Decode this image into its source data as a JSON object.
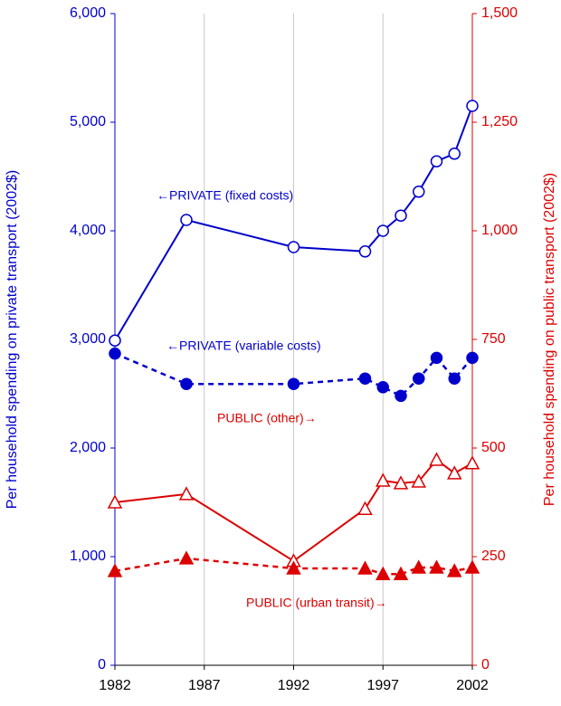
{
  "chart_data": {
    "type": "line",
    "x": [
      1982,
      1986,
      1992,
      1996,
      1997,
      1998,
      1999,
      2000,
      2001,
      2002
    ],
    "xlim": [
      1982,
      2002
    ],
    "xticks": [
      1982,
      1987,
      1992,
      1997,
      2002
    ],
    "ylim": [
      0,
      6000
    ],
    "yticks": [
      0,
      {
        "value": 1000,
        "label": "1,000"
      },
      {
        "value": 2000,
        "label": "2,000"
      },
      {
        "value": 3000,
        "label": "3,000"
      },
      {
        "value": 4000,
        "label": "4,000"
      },
      {
        "value": 5000,
        "label": "5,000"
      },
      {
        "value": 6000,
        "label": "6,000"
      }
    ],
    "y2lim": [
      0,
      1500
    ],
    "y2ticks": [
      0,
      250,
      500,
      750,
      {
        "value": 1000,
        "label": "1,000"
      },
      {
        "value": 1250,
        "label": "1,250"
      },
      {
        "value": 1500,
        "label": "1,500"
      }
    ],
    "ylabel": "Per household spending on private transport (2002$)",
    "y2label": "Per household spending on public transport (2002$)",
    "ycolor": "#0000cc",
    "y2color": "#dd0000",
    "grid": "x",
    "series": [
      {
        "name": "PRIVATE (fixed costs)",
        "color": "#0000cc",
        "dashed": false,
        "marker": "circle",
        "filled": false,
        "values": [
          2990,
          4100,
          3850,
          3810,
          4000,
          4140,
          4360,
          4640,
          4710,
          5150
        ]
      },
      {
        "name": "PRIVATE (variable costs)",
        "color": "#0000cc",
        "dashed": true,
        "marker": "circle",
        "filled": true,
        "values": [
          2870,
          2590,
          2590,
          2640,
          2560,
          2480,
          2640,
          2830,
          2640,
          2830
        ]
      },
      {
        "name": "PUBLIC  (other)",
        "color": "#dd0000",
        "dashed": false,
        "marker": "triangle",
        "filled": false,
        "axis": "y2",
        "values": [
          375,
          394,
          240,
          360,
          425,
          419,
          423,
          473,
          442,
          465
        ]
      },
      {
        "name": "PUBLIC (urban transit)",
        "color": "#dd0000",
        "dashed": true,
        "marker": "triangle",
        "filled": true,
        "axis": "y2",
        "values": [
          217,
          246,
          223,
          223,
          210,
          210,
          225,
          225,
          217,
          225
        ]
      }
    ],
    "annotations": [
      "←PRIVATE (fixed costs)",
      "←PRIVATE (variable costs)",
      "PUBLIC  (other)→",
      "PUBLIC (urban transit)→"
    ]
  }
}
